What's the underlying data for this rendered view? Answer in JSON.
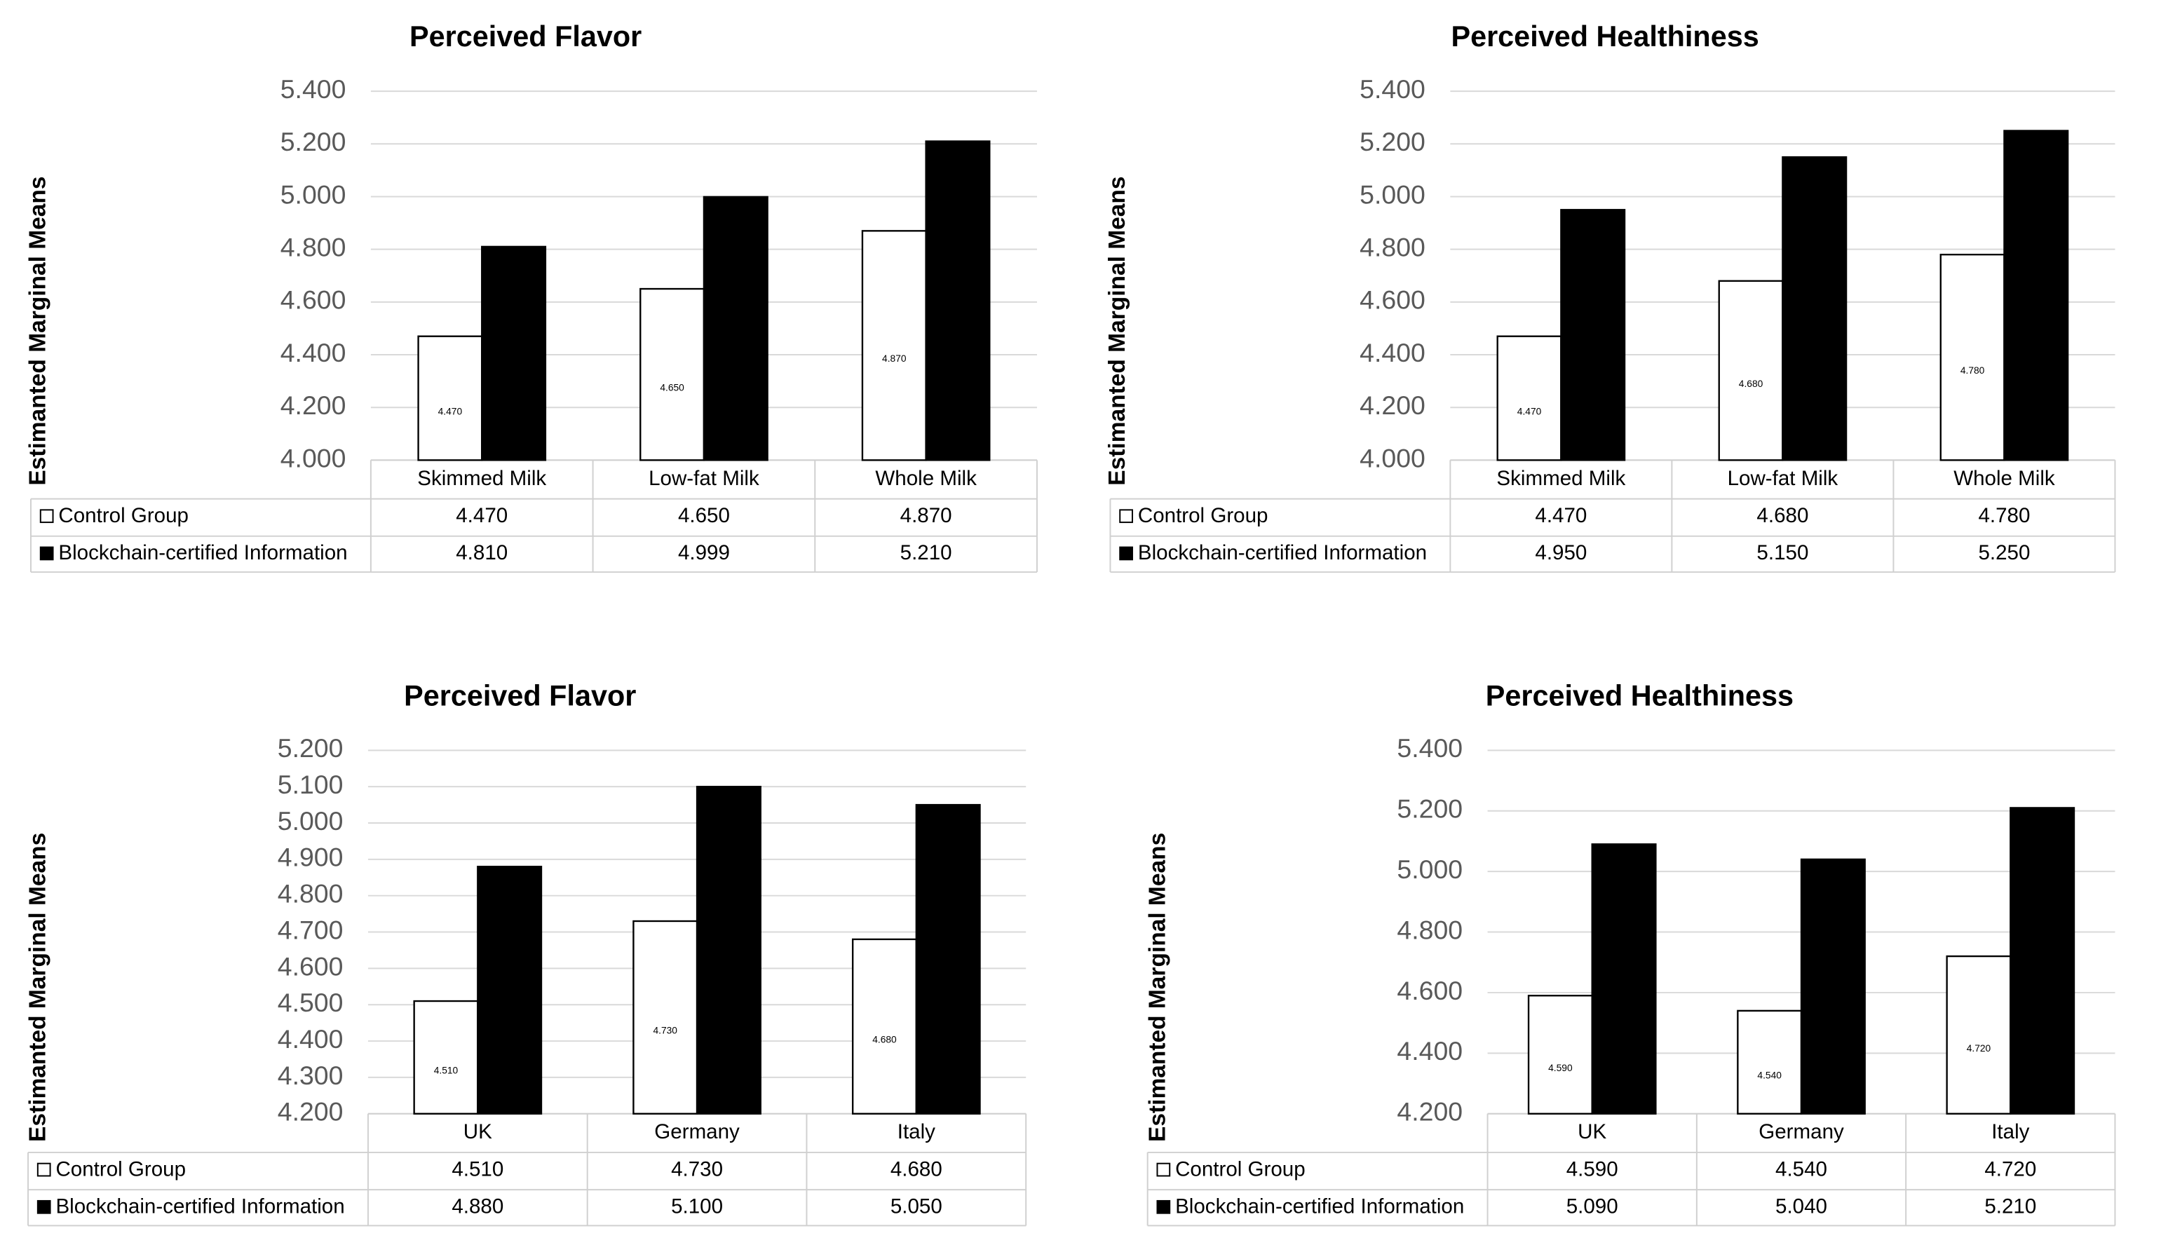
{
  "chart_data": [
    {
      "type": "bar",
      "title": "Perceived Flavor",
      "y_label": "Estimanted Marginal Means",
      "categories": [
        "Skimmed Milk",
        "Low-fat Milk",
        "Whole Milk"
      ],
      "series": [
        {
          "name": "Control Group",
          "color": "#ffffff",
          "values": [
            4.47,
            4.65,
            4.87
          ],
          "value_labels": [
            "4.470",
            "4.650",
            "4.870"
          ]
        },
        {
          "name": "Blockchain-certified Information",
          "color": "#000000",
          "values": [
            4.81,
            4.999,
            5.21
          ],
          "value_labels": [
            "4.810",
            "4.999",
            "5.210"
          ]
        }
      ],
      "ylim": [
        4.0,
        5.4
      ],
      "yticks": [
        {
          "value": 4.0,
          "label": "4.000"
        },
        {
          "value": 4.2,
          "label": "4.200"
        },
        {
          "value": 4.4,
          "label": "4.400"
        },
        {
          "value": 4.6,
          "label": "4.600"
        },
        {
          "value": 4.8,
          "label": "4.800"
        },
        {
          "value": 5.0,
          "label": "5.000"
        },
        {
          "value": 5.2,
          "label": "5.200"
        },
        {
          "value": 5.4,
          "label": "5.400"
        }
      ],
      "grid": true
    },
    {
      "type": "bar",
      "title": "Perceived Healthiness",
      "y_label": "Estimanted Marginal Means",
      "categories": [
        "Skimmed Milk",
        "Low-fat Milk",
        "Whole Milk"
      ],
      "series": [
        {
          "name": "Control Group",
          "color": "#ffffff",
          "values": [
            4.47,
            4.68,
            4.78
          ],
          "value_labels": [
            "4.470",
            "4.680",
            "4.780"
          ]
        },
        {
          "name": "Blockchain-certified Information",
          "color": "#000000",
          "values": [
            4.95,
            5.15,
            5.25
          ],
          "value_labels": [
            "4.950",
            "5.150",
            "5.250"
          ]
        }
      ],
      "ylim": [
        4.0,
        5.4
      ],
      "yticks": [
        {
          "value": 4.0,
          "label": "4.000"
        },
        {
          "value": 4.2,
          "label": "4.200"
        },
        {
          "value": 4.4,
          "label": "4.400"
        },
        {
          "value": 4.6,
          "label": "4.600"
        },
        {
          "value": 4.8,
          "label": "4.800"
        },
        {
          "value": 5.0,
          "label": "5.000"
        },
        {
          "value": 5.2,
          "label": "5.200"
        },
        {
          "value": 5.4,
          "label": "5.400"
        }
      ],
      "grid": true
    },
    {
      "type": "bar",
      "title": "Perceived Flavor",
      "y_label": "Estimanted Marginal Means",
      "categories": [
        "UK",
        "Germany",
        "Italy"
      ],
      "series": [
        {
          "name": "Control Group",
          "color": "#ffffff",
          "values": [
            4.51,
            4.73,
            4.68
          ],
          "value_labels": [
            "4.510",
            "4.730",
            "4.680"
          ]
        },
        {
          "name": "Blockchain-certified Information",
          "color": "#000000",
          "values": [
            4.88,
            5.1,
            5.05
          ],
          "value_labels": [
            "4.880",
            "5.100",
            "5.050"
          ]
        }
      ],
      "ylim": [
        4.2,
        5.2
      ],
      "yticks": [
        {
          "value": 4.2,
          "label": "4.200"
        },
        {
          "value": 4.3,
          "label": "4.300"
        },
        {
          "value": 4.4,
          "label": "4.400"
        },
        {
          "value": 4.5,
          "label": "4.500"
        },
        {
          "value": 4.6,
          "label": "4.600"
        },
        {
          "value": 4.7,
          "label": "4.700"
        },
        {
          "value": 4.8,
          "label": "4.800"
        },
        {
          "value": 4.9,
          "label": "4.900"
        },
        {
          "value": 5.0,
          "label": "5.000"
        },
        {
          "value": 5.1,
          "label": "5.100"
        },
        {
          "value": 5.2,
          "label": "5.200"
        }
      ],
      "grid": true
    },
    {
      "type": "bar",
      "title": "Perceived Healthiness",
      "y_label": "Estimanted Marginal Means",
      "categories": [
        "UK",
        "Germany",
        "Italy"
      ],
      "series": [
        {
          "name": "Control Group",
          "color": "#ffffff",
          "values": [
            4.59,
            4.54,
            4.72
          ],
          "value_labels": [
            "4.590",
            "4.540",
            "4.720"
          ]
        },
        {
          "name": "Blockchain-certified Information",
          "color": "#000000",
          "values": [
            5.09,
            5.04,
            5.21
          ],
          "value_labels": [
            "5.090",
            "5.040",
            "5.210"
          ]
        }
      ],
      "ylim": [
        4.2,
        5.4
      ],
      "yticks": [
        {
          "value": 4.2,
          "label": "4.200"
        },
        {
          "value": 4.4,
          "label": "4.400"
        },
        {
          "value": 4.6,
          "label": "4.600"
        },
        {
          "value": 4.8,
          "label": "4.800"
        },
        {
          "value": 5.0,
          "label": "5.000"
        },
        {
          "value": 5.2,
          "label": "5.200"
        },
        {
          "value": 5.4,
          "label": "5.400"
        }
      ],
      "grid": true
    }
  ]
}
